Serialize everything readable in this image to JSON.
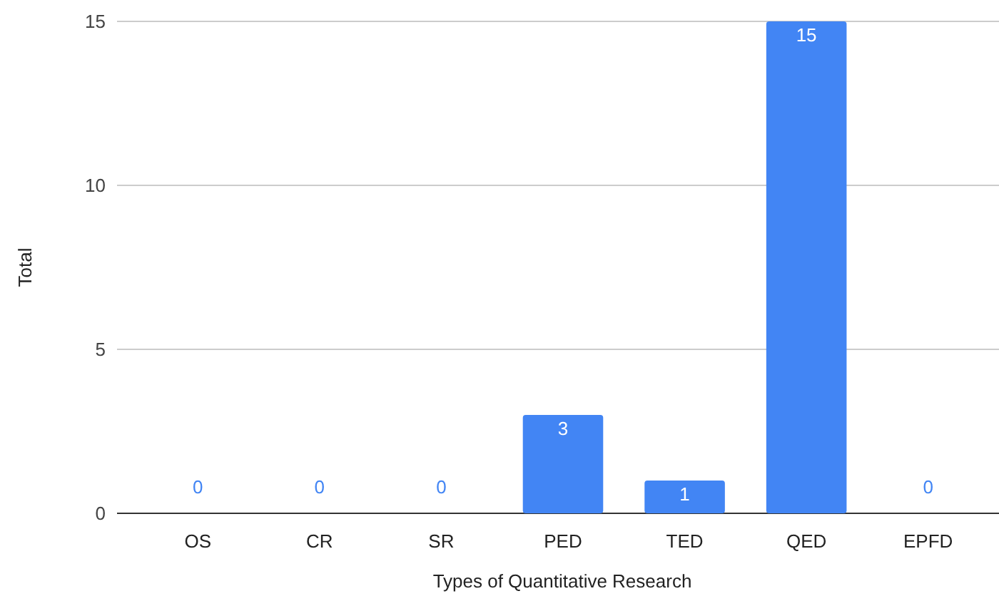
{
  "chart_data": {
    "type": "bar",
    "xlabel": "Types of Quantitative Research",
    "ylabel": "Total",
    "categories": [
      "OS",
      "CR",
      "SR",
      "PED",
      "TED",
      "QED",
      "EPFD"
    ],
    "values": [
      0,
      0,
      0,
      3,
      1,
      15,
      0
    ],
    "color": "#4285f4",
    "ylim": [
      0,
      15
    ],
    "yticks": [
      0,
      5,
      10,
      15
    ],
    "grid": "y",
    "data_labels": true
  }
}
